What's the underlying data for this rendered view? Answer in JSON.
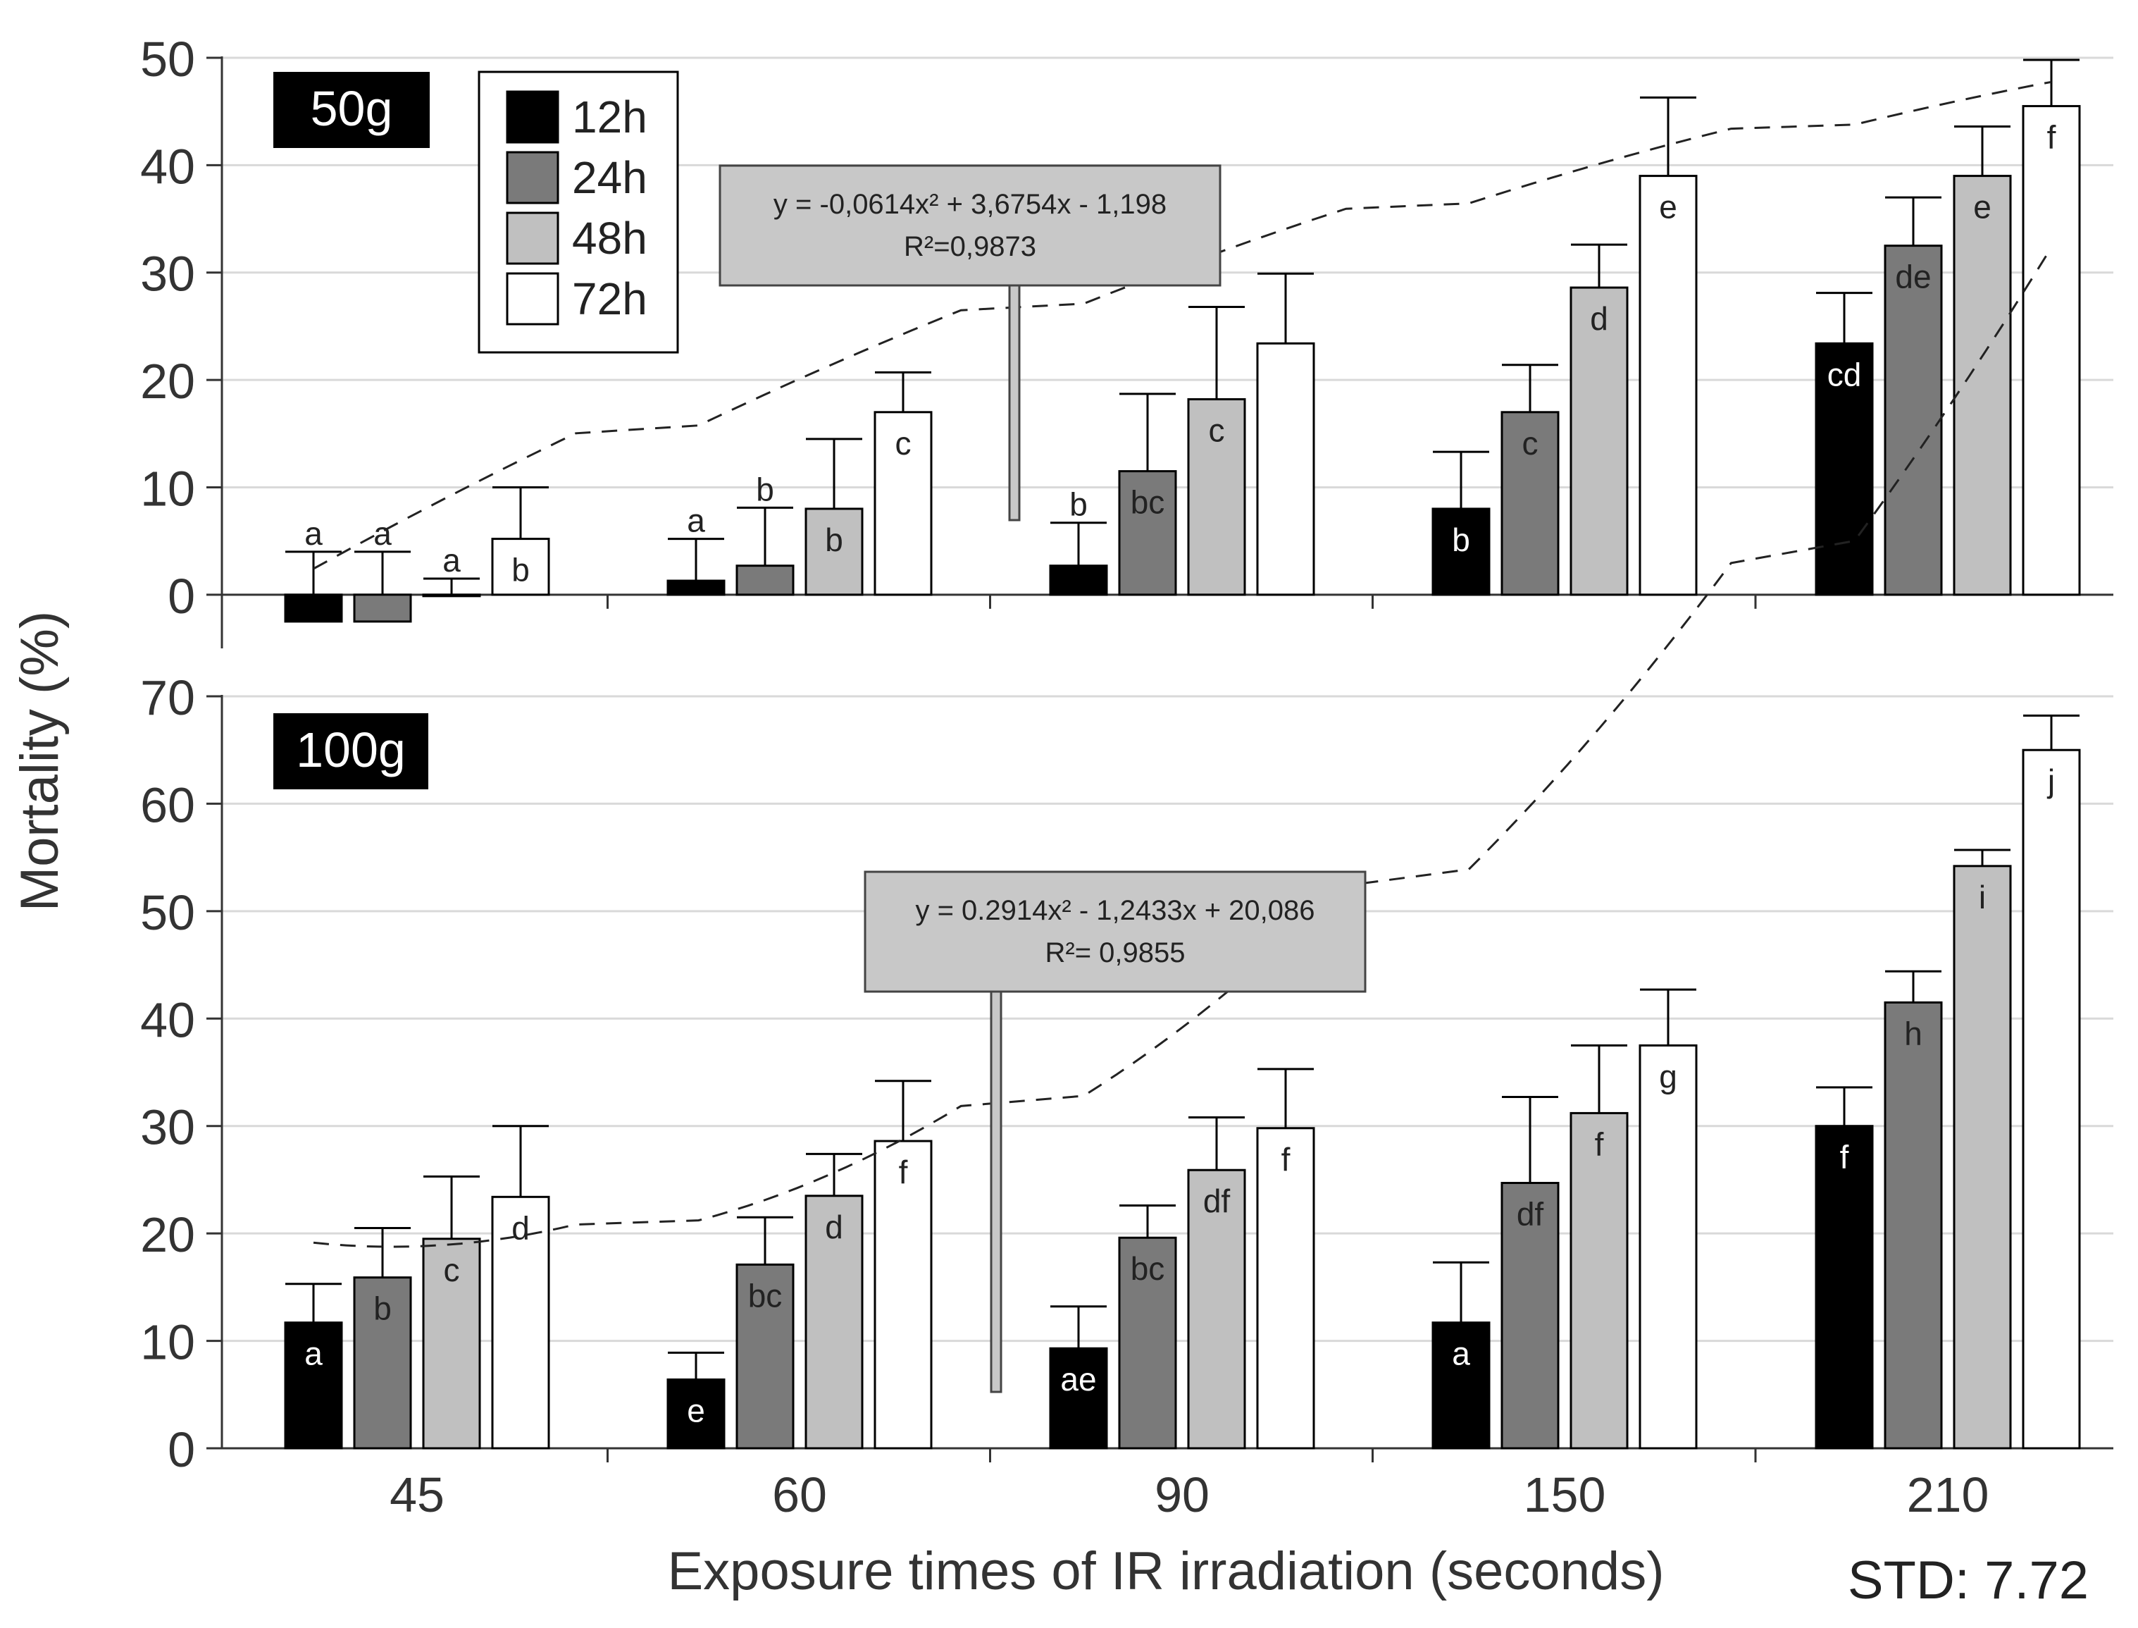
{
  "y_axis_label": "Mortality (%)",
  "x_axis_label": "Exposure times of IR irradiation (seconds)",
  "std_note": "STD: 7.72",
  "legend": [
    {
      "label": "12h",
      "color": "#000000"
    },
    {
      "label": "24h",
      "color": "#7a7a7a"
    },
    {
      "label": "48h",
      "color": "#c0c0c0"
    },
    {
      "label": "72h",
      "color": "#ffffff"
    }
  ],
  "chart_data": [
    {
      "type": "bar",
      "panel_label": "50g",
      "categories": [
        "45",
        "60",
        "90",
        "150",
        "210"
      ],
      "ylim": [
        -5,
        50
      ],
      "yticks": [
        0,
        10,
        20,
        30,
        40,
        50
      ],
      "grid": true,
      "series": [
        {
          "name": "12h",
          "values": [
            -2.5,
            1.3,
            2.7,
            8.0,
            23.4
          ],
          "errors": [
            4.0,
            3.9,
            4.0,
            5.3,
            4.7
          ],
          "letters": [
            "a",
            "a",
            "b",
            "b",
            "cd"
          ]
        },
        {
          "name": "24h",
          "values": [
            -2.5,
            2.7,
            11.5,
            17.0,
            32.5
          ],
          "errors": [
            4.0,
            5.4,
            7.2,
            4.4,
            4.5
          ],
          "letters": [
            "a",
            "b",
            "bc",
            "c",
            "de"
          ]
        },
        {
          "name": "48h",
          "values": [
            0.0,
            8.0,
            18.2,
            28.6,
            39.0
          ],
          "errors": [
            1.5,
            6.5,
            8.6,
            4.0,
            4.6
          ],
          "letters": [
            "a",
            "b",
            "c",
            "d",
            "e"
          ]
        },
        {
          "name": "72h",
          "values": [
            5.2,
            17.0,
            23.4,
            39.0,
            45.5
          ],
          "errors": [
            4.8,
            3.7,
            6.5,
            7.3,
            4.3
          ],
          "letters": [
            "b",
            "c",
            "",
            "e",
            "f"
          ]
        }
      ],
      "trendline": {
        "equation": "y = -0,0614x² + 3,6754x - 1,198",
        "r2": "R²=0,9873",
        "coefficients": [
          -0.0614,
          3.6754,
          -1.198
        ],
        "x_index_range": [
          1,
          20
        ]
      }
    },
    {
      "type": "bar",
      "panel_label": "100g",
      "categories": [
        "45",
        "60",
        "90",
        "150",
        "210"
      ],
      "ylim": [
        0,
        70
      ],
      "yticks": [
        0,
        10,
        20,
        30,
        40,
        50,
        60,
        70
      ],
      "grid": true,
      "series": [
        {
          "name": "12h",
          "values": [
            11.7,
            6.4,
            9.3,
            11.7,
            30.0
          ],
          "errors": [
            3.6,
            2.5,
            3.9,
            5.6,
            3.6
          ],
          "letters": [
            "a",
            "e",
            "ae",
            "a",
            "f"
          ]
        },
        {
          "name": "24h",
          "values": [
            15.9,
            17.1,
            19.6,
            24.7,
            41.5
          ],
          "errors": [
            4.6,
            4.4,
            3.0,
            8.0,
            2.9
          ],
          "letters": [
            "b",
            "bc",
            "bc",
            "df",
            "h"
          ]
        },
        {
          "name": "48h",
          "values": [
            19.5,
            23.5,
            25.9,
            31.2,
            54.2
          ],
          "errors": [
            5.8,
            3.9,
            4.9,
            6.3,
            1.5
          ],
          "letters": [
            "c",
            "d",
            "df",
            "f",
            "i"
          ]
        },
        {
          "name": "72h",
          "values": [
            23.4,
            28.6,
            29.8,
            37.5,
            65.0
          ],
          "errors": [
            6.6,
            5.6,
            5.5,
            5.2,
            3.2
          ],
          "letters": [
            "d",
            "f",
            "f",
            "g",
            "j"
          ]
        }
      ],
      "trendline": {
        "equation": "y = 0.2914x² - 1,2433x + 20,086",
        "r2": "R²= 0,9855",
        "coefficients": [
          0.2914,
          -1.2433,
          20.086
        ],
        "x_index_range": [
          1,
          20
        ]
      }
    }
  ]
}
